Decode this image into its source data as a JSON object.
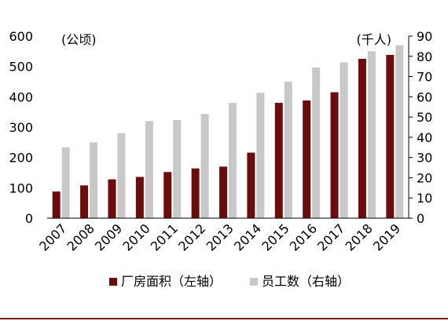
{
  "chart_data": {
    "type": "bar",
    "categories": [
      "2007",
      "2008",
      "2009",
      "2010",
      "2011",
      "2012",
      "2013",
      "2014",
      "2015",
      "2016",
      "2017",
      "2018",
      "2019"
    ],
    "series": [
      {
        "name": "厂房面积（左轴）",
        "axis": "left",
        "color": "#6b0d0d",
        "values": [
          88,
          108,
          128,
          136,
          152,
          164,
          170,
          216,
          380,
          388,
          415,
          525,
          538
        ]
      },
      {
        "name": "员工数（右轴）",
        "axis": "right",
        "color": "#c8c8c8",
        "values": [
          35,
          37.5,
          42,
          48,
          48.5,
          51.5,
          57,
          62,
          67.5,
          74.5,
          77,
          82.5,
          85.5
        ]
      }
    ],
    "left_axis": {
      "unit": "(公顷)",
      "ylim": [
        0,
        600
      ],
      "ticks": [
        0,
        100,
        200,
        300,
        400,
        500,
        600
      ]
    },
    "right_axis": {
      "unit": "(千人)",
      "ylim": [
        0,
        90
      ],
      "ticks": [
        0,
        10,
        20,
        30,
        40,
        50,
        60,
        70,
        80,
        90
      ]
    },
    "legend": {
      "placement": "bottom"
    }
  }
}
